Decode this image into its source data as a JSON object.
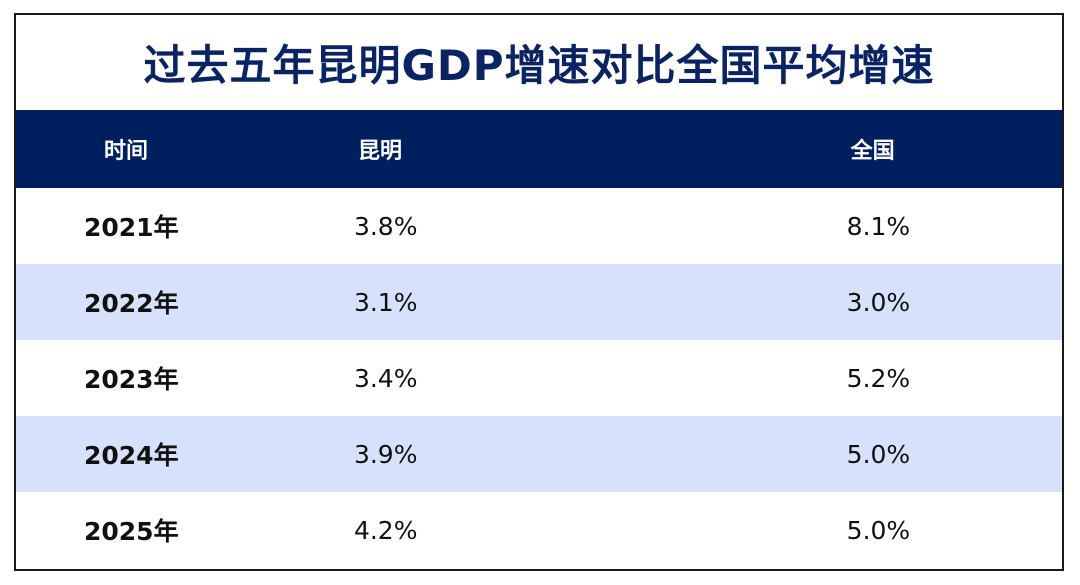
{
  "chart_data": {
    "type": "table",
    "title": "过去五年昆明GDP增速对比全国平均增速",
    "columns": [
      "时间",
      "昆明",
      "全国"
    ],
    "rows": [
      {
        "year": "2021年",
        "kunming": "3.8%",
        "national": "8.1%"
      },
      {
        "year": "2022年",
        "kunming": "3.1%",
        "national": "3.0%"
      },
      {
        "year": "2023年",
        "kunming": "3.4%",
        "national": "5.2%"
      },
      {
        "year": "2024年",
        "kunming": "3.9%",
        "national": "5.0%"
      },
      {
        "year": "2025年",
        "kunming": "4.2%",
        "national": "5.0%"
      }
    ],
    "series": [
      {
        "name": "昆明",
        "values": [
          3.8,
          3.1,
          3.4,
          3.9,
          4.2
        ]
      },
      {
        "name": "全国",
        "values": [
          8.1,
          3.0,
          5.2,
          5.0,
          5.0
        ]
      }
    ],
    "categories": [
      "2021年",
      "2022年",
      "2023年",
      "2024年",
      "2025年"
    ]
  },
  "colors": {
    "title": "#0a2463",
    "header_bg": "#001f5f",
    "header_text": "#ffffff",
    "alt_row_bg": "#d6e2fb",
    "row_bg": "#ffffff"
  }
}
